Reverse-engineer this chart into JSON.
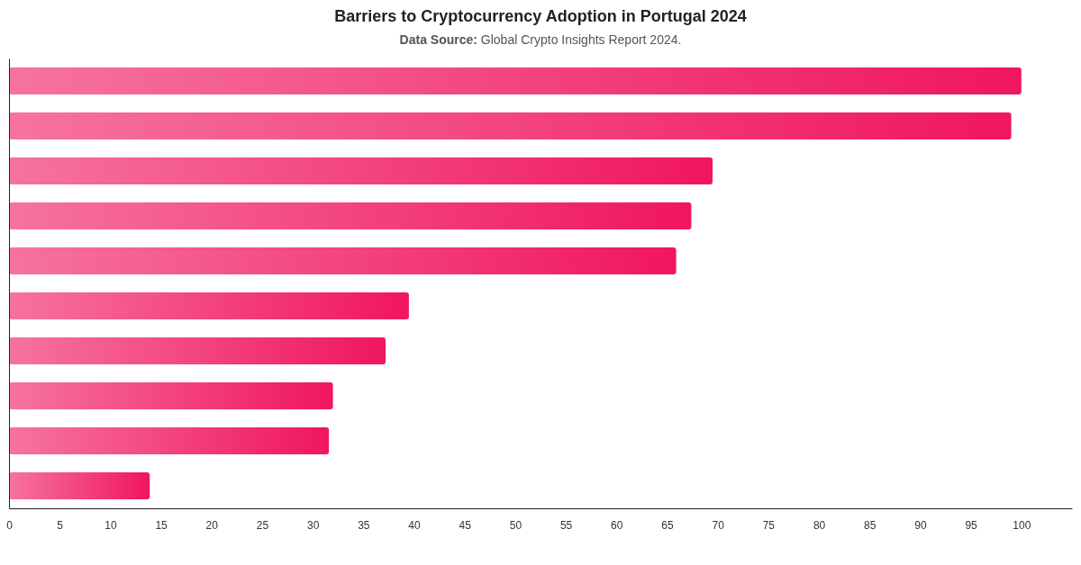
{
  "chart_data": {
    "type": "bar",
    "orientation": "horizontal",
    "title": "Barriers to Cryptocurrency Adoption in Portugal 2024",
    "subtitle": "Data Source: Global Crypto Insights Report 2024.",
    "categories": [
      null,
      null,
      null,
      null,
      null,
      null,
      null,
      null,
      null,
      null
    ],
    "values": [
      100,
      99,
      69.5,
      67.4,
      65.9,
      39.5,
      37.2,
      32,
      31.6,
      13.9
    ],
    "color": "#f0165f",
    "xlim": [
      0,
      105
    ],
    "xticks": [
      0,
      5,
      10,
      15,
      20,
      25,
      30,
      35,
      40,
      45,
      50,
      55,
      60,
      65,
      70,
      75,
      80,
      85,
      90,
      95,
      100
    ],
    "grid": false
  }
}
